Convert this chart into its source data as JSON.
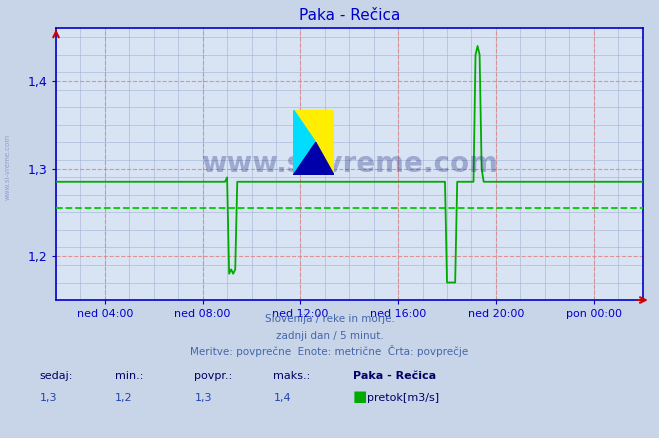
{
  "title": "Paka - Rečica",
  "bg_color": "#c8d4e8",
  "plot_bg_color": "#d8e4f4",
  "line_color": "#00aa00",
  "avg_line_color": "#00cc00",
  "grid_major_color": "#dd8888",
  "grid_minor_color": "#9aabcc",
  "x_label_color": "#0000cc",
  "y_label_color": "#0000cc",
  "title_color": "#0000cc",
  "spine_color": "#0000cc",
  "xlim": [
    0,
    288
  ],
  "ylim": [
    1.15,
    1.46
  ],
  "yticks": [
    1.2,
    1.3,
    1.4
  ],
  "xtick_positions": [
    24,
    72,
    120,
    168,
    216,
    264
  ],
  "xtick_labels": [
    "ned 04:00",
    "ned 08:00",
    "ned 12:00",
    "ned 16:00",
    "ned 20:00",
    "pon 00:00"
  ],
  "avg_value": 1.255,
  "sedaj": "1,3",
  "min_val": "1,2",
  "povpr": "1,3",
  "maks": "1,4",
  "footer_line1": "Slovenija / reke in morje.",
  "footer_line2": "zadnji dan / 5 minut.",
  "footer_line3": "Meritve: povprečne  Enote: metrične  Črta: povprečje",
  "legend_station": "Paka - Rečica",
  "legend_series": "pretok[m3/s]",
  "footer_color": "#4466aa",
  "label_header_color": "#000066",
  "label_value_color": "#2244aa",
  "watermark_color": "#1a237e",
  "arrow_color": "#cc0000"
}
